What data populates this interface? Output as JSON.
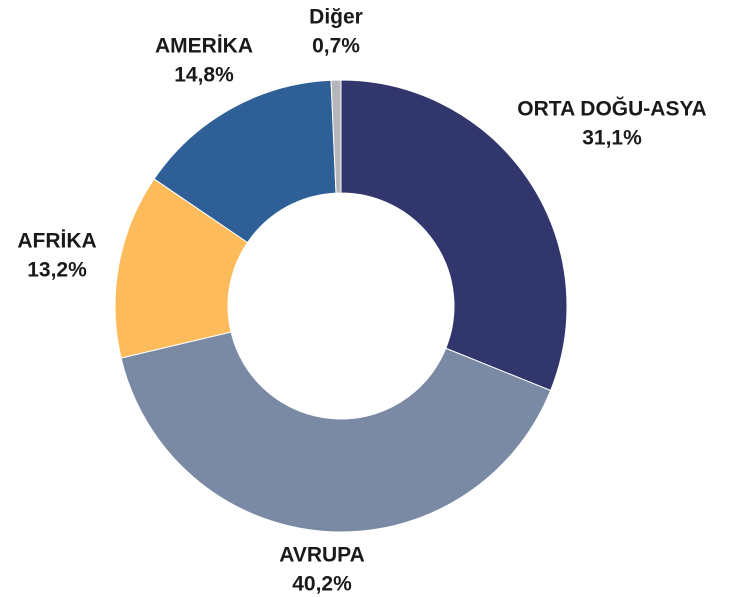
{
  "chart_data": {
    "type": "pie",
    "categories": [
      "ORTA DOĞU-ASYA",
      "AVRUPA",
      "AFRİKA",
      "AMERİKA",
      "Diğer"
    ],
    "values": [
      31.1,
      40.2,
      13.2,
      14.8,
      0.7
    ],
    "value_labels": [
      "31,1%",
      "40,2%",
      "13,2%",
      "14,8%",
      "0,7%"
    ],
    "colors": [
      "#31376c",
      "#7a8aa4",
      "#fdbb5b",
      "#2f5f97",
      "#b4b6ba"
    ]
  }
}
